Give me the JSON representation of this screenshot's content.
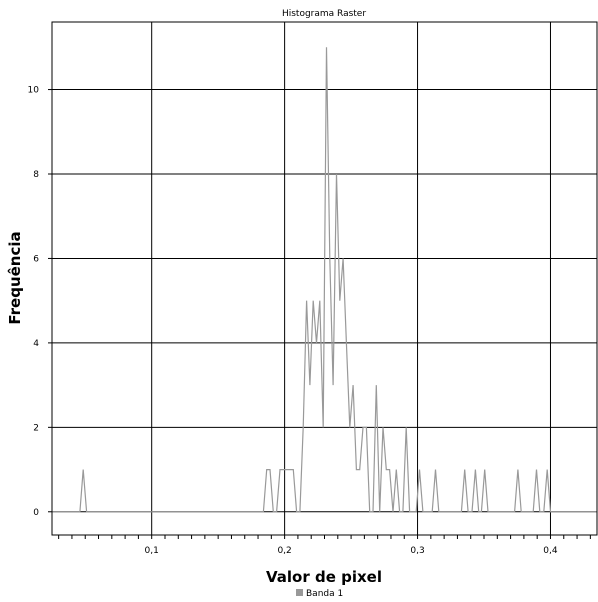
{
  "chart_data": {
    "type": "line",
    "title": "Histograma Raster",
    "xlabel": "Valor de pixel",
    "ylabel": "Frequência",
    "xlim": [
      0.025,
      0.435
    ],
    "ylim": [
      -0.55,
      11.6
    ],
    "xticks": [
      0.1,
      0.2,
      0.3,
      0.4
    ],
    "xtick_labels": [
      "0,1",
      "0,2",
      "0,3",
      "0,4"
    ],
    "yticks": [
      0,
      2,
      4,
      6,
      8,
      10
    ],
    "ytick_labels": [
      "0",
      "2",
      "4",
      "6",
      "8",
      "10"
    ],
    "grid": true,
    "legend": "bottom-center",
    "series": [
      {
        "name": "Banda 1",
        "color": "#999999",
        "points": [
          [
            0.046,
            0
          ],
          [
            0.0485,
            1
          ],
          [
            0.051,
            0
          ],
          [
            0.184,
            0
          ],
          [
            0.1865,
            1
          ],
          [
            0.189,
            1
          ],
          [
            0.1915,
            0
          ],
          [
            0.194,
            0
          ],
          [
            0.1965,
            1
          ],
          [
            0.199,
            1
          ],
          [
            0.2015,
            1
          ],
          [
            0.204,
            1
          ],
          [
            0.2065,
            1
          ],
          [
            0.209,
            0
          ],
          [
            0.2115,
            0
          ],
          [
            0.214,
            2
          ],
          [
            0.2165,
            5
          ],
          [
            0.219,
            3
          ],
          [
            0.2215,
            5
          ],
          [
            0.224,
            4
          ],
          [
            0.2265,
            5
          ],
          [
            0.229,
            2
          ],
          [
            0.2315,
            11
          ],
          [
            0.234,
            6
          ],
          [
            0.2365,
            3
          ],
          [
            0.239,
            8
          ],
          [
            0.2415,
            5
          ],
          [
            0.244,
            6
          ],
          [
            0.2465,
            4
          ],
          [
            0.249,
            2
          ],
          [
            0.2515,
            3
          ],
          [
            0.254,
            1
          ],
          [
            0.2565,
            1
          ],
          [
            0.259,
            2
          ],
          [
            0.2615,
            2
          ],
          [
            0.264,
            0
          ],
          [
            0.2665,
            0
          ],
          [
            0.269,
            3
          ],
          [
            0.2715,
            0
          ],
          [
            0.274,
            2
          ],
          [
            0.2765,
            1
          ],
          [
            0.279,
            1
          ],
          [
            0.2815,
            0
          ],
          [
            0.284,
            1
          ],
          [
            0.2865,
            0
          ],
          [
            0.289,
            0
          ],
          [
            0.2915,
            2
          ],
          [
            0.294,
            0
          ],
          [
            0.2965,
            0
          ],
          [
            0.299,
            0
          ],
          [
            0.3015,
            1
          ],
          [
            0.304,
            0
          ],
          [
            0.311,
            0
          ],
          [
            0.3135,
            1
          ],
          [
            0.316,
            0
          ],
          [
            0.333,
            0
          ],
          [
            0.3355,
            1
          ],
          [
            0.338,
            0
          ],
          [
            0.341,
            0
          ],
          [
            0.3435,
            1
          ],
          [
            0.346,
            0
          ],
          [
            0.348,
            0
          ],
          [
            0.3505,
            1
          ],
          [
            0.353,
            0
          ],
          [
            0.373,
            0
          ],
          [
            0.3755,
            1
          ],
          [
            0.378,
            0
          ],
          [
            0.387,
            0
          ],
          [
            0.3895,
            1
          ],
          [
            0.392,
            0
          ],
          [
            0.395,
            0
          ],
          [
            0.3975,
            1
          ],
          [
            0.4,
            0
          ]
        ]
      }
    ]
  }
}
